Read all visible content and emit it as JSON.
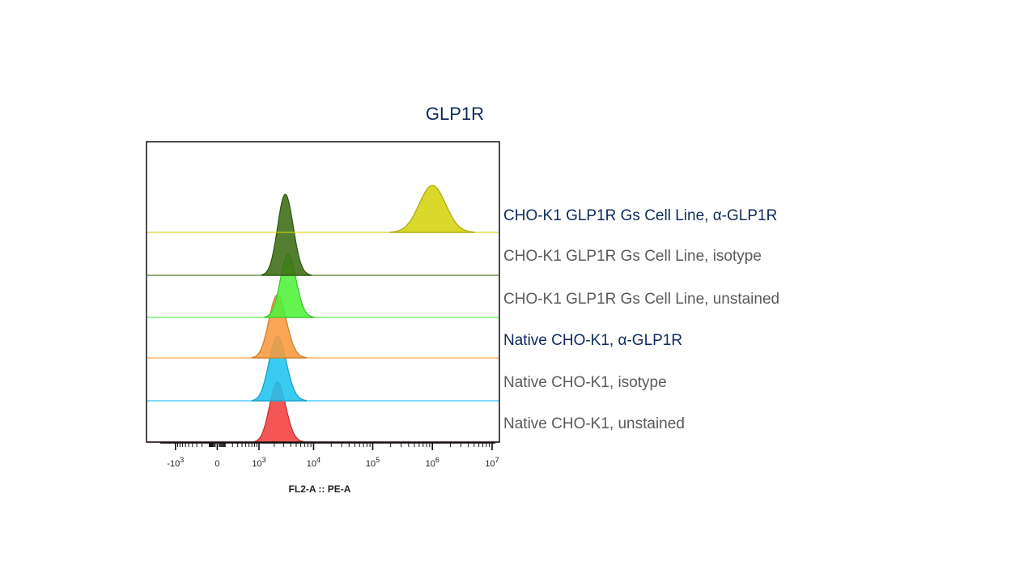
{
  "chart_data": {
    "type": "area",
    "title": "GLP1R",
    "xlabel": "FL2-A :: PE-A",
    "ylabel": "",
    "x_scale": "biexponential",
    "xlim": [
      -2000,
      10000000
    ],
    "x_ticks": [
      {
        "value": -1000,
        "base": "-10",
        "exp": "3"
      },
      {
        "value": 0,
        "base": "0",
        "exp": ""
      },
      {
        "value": 1000,
        "base": "10",
        "exp": "3"
      },
      {
        "value": 10000,
        "base": "10",
        "exp": "4"
      },
      {
        "value": 100000,
        "base": "10",
        "exp": "5"
      },
      {
        "value": 1000000,
        "base": "10",
        "exp": "6"
      },
      {
        "value": 10000000,
        "base": "10",
        "exp": "7"
      }
    ],
    "grid": false,
    "legend_placement": "right, aligned with each histogram row",
    "series": [
      {
        "name": "CHO-K1 GLP1R Gs Cell Line, α-GLP1R",
        "color": "#d6d30f",
        "peak_x": 1000000,
        "spread_decades": 0.22,
        "emphasis": true
      },
      {
        "name": "CHO-K1 GLP1R Gs Cell Line, isotype",
        "color": "#3c6d14",
        "peak_x": 3200,
        "spread_decades": 0.14,
        "emphasis": false
      },
      {
        "name": "CHO-K1 GLP1R Gs Cell Line, unstained",
        "color": "#4df23a",
        "peak_x": 3600,
        "spread_decades": 0.14,
        "emphasis": false
      },
      {
        "name": "Native CHO-K1, α-GLP1R",
        "color": "#f99a3c",
        "peak_x": 2300,
        "spread_decades": 0.16,
        "emphasis": true
      },
      {
        "name": "Native CHO-K1, isotype",
        "color": "#1fc4f0",
        "peak_x": 2300,
        "spread_decades": 0.16,
        "emphasis": false
      },
      {
        "name": "Native CHO-K1, unstained",
        "color": "#f23f3f",
        "peak_x": 2300,
        "spread_decades": 0.15,
        "emphasis": false
      }
    ]
  }
}
